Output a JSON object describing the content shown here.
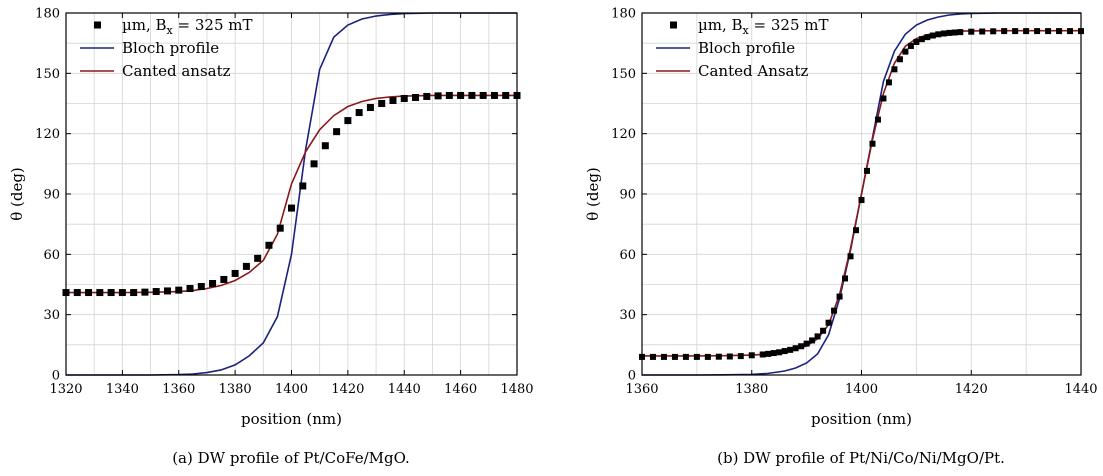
{
  "chart_data": [
    {
      "type": "line",
      "caption": "(a) DW profile of Pt/CoFe/MgO.",
      "xlabel": "position (nm)",
      "ylabel": "θ (deg)",
      "xlim": [
        1320,
        1480
      ],
      "ylim": [
        0,
        180
      ],
      "xticks": [
        1320,
        1340,
        1360,
        1380,
        1400,
        1420,
        1440,
        1460,
        1480
      ],
      "yticks": [
        0,
        30,
        60,
        90,
        120,
        150,
        180
      ],
      "grid": true,
      "legend_position": "top-left",
      "series": [
        {
          "name": "µm, B_x = 325 mT",
          "legend_parts": [
            "µm, B",
            "x",
            " = 325 mT"
          ],
          "style": "markers",
          "color": "#000000",
          "x": [
            1320,
            1324,
            1328,
            1332,
            1336,
            1340,
            1344,
            1348,
            1352,
            1356,
            1360,
            1364,
            1368,
            1372,
            1376,
            1380,
            1384,
            1388,
            1392,
            1396,
            1400,
            1404,
            1408,
            1412,
            1416,
            1420,
            1424,
            1428,
            1432,
            1436,
            1440,
            1444,
            1448,
            1452,
            1456,
            1460,
            1464,
            1468,
            1472,
            1476,
            1480
          ],
          "y": [
            41,
            41,
            41,
            41,
            41,
            41,
            41,
            41.2,
            41.5,
            41.8,
            42.2,
            43,
            44,
            45.5,
            47.5,
            50.5,
            54,
            58,
            64.5,
            73,
            83,
            94,
            105,
            114,
            121,
            126.5,
            130.5,
            133,
            135,
            136.5,
            137.5,
            138,
            138.5,
            138.8,
            139,
            139,
            139,
            139,
            139,
            139,
            139
          ]
        },
        {
          "name": "Bloch profile",
          "style": "line",
          "color": "#1a237e",
          "x": [
            1320,
            1330,
            1340,
            1350,
            1360,
            1365,
            1370,
            1375,
            1380,
            1385,
            1390,
            1395,
            1400,
            1405,
            1410,
            1415,
            1420,
            1425,
            1430,
            1435,
            1440,
            1450,
            1460,
            1470,
            1480
          ],
          "y": [
            0,
            0,
            0,
            0,
            0.2,
            0.5,
            1.2,
            2.5,
            5,
            9.5,
            16,
            29,
            60,
            112,
            152,
            168,
            174,
            177,
            178.5,
            179.3,
            179.7,
            180,
            180,
            180,
            180
          ]
        },
        {
          "name": "Canted ansatz",
          "style": "line",
          "color": "#8b1a1a",
          "x": [
            1320,
            1330,
            1340,
            1350,
            1360,
            1365,
            1370,
            1375,
            1380,
            1385,
            1390,
            1395,
            1400,
            1405,
            1410,
            1415,
            1420,
            1425,
            1430,
            1435,
            1440,
            1450,
            1460,
            1470,
            1480
          ],
          "y": [
            41,
            41,
            41,
            41.1,
            41.5,
            42,
            43,
            44.5,
            47,
            51,
            57,
            70,
            95,
            111,
            122,
            129,
            133.5,
            136,
            137.5,
            138.3,
            138.7,
            139,
            139,
            139,
            139
          ]
        }
      ]
    },
    {
      "type": "line",
      "caption": "(b) DW profile of Pt/Ni/Co/Ni/MgO/Pt.",
      "xlabel": "position (nm)",
      "ylabel": "θ (deg)",
      "xlim": [
        1360,
        1440
      ],
      "ylim": [
        0,
        180
      ],
      "xticks": [
        1360,
        1380,
        1400,
        1420,
        1440
      ],
      "yticks": [
        0,
        30,
        60,
        90,
        120,
        150,
        180
      ],
      "grid": true,
      "legend_position": "top-left",
      "series": [
        {
          "name": "µm, B_x = 325 mT",
          "legend_parts": [
            "µm, B",
            "x",
            " = 325 mT"
          ],
          "style": "markers",
          "color": "#000000",
          "x": [
            1360,
            1362,
            1364,
            1366,
            1368,
            1370,
            1372,
            1374,
            1376,
            1378,
            1380,
            1382,
            1383,
            1384,
            1385,
            1386,
            1387,
            1388,
            1389,
            1390,
            1391,
            1392,
            1393,
            1394,
            1395,
            1396,
            1397,
            1398,
            1399,
            1400,
            1401,
            1402,
            1403,
            1404,
            1405,
            1406,
            1407,
            1408,
            1409,
            1410,
            1411,
            1412,
            1413,
            1414,
            1415,
            1416,
            1417,
            1418,
            1420,
            1422,
            1424,
            1426,
            1428,
            1430,
            1432,
            1434,
            1436,
            1438,
            1440
          ],
          "y": [
            9,
            9,
            9,
            9,
            9,
            9,
            9,
            9.1,
            9.2,
            9.4,
            9.8,
            10.2,
            10.5,
            10.9,
            11.3,
            11.9,
            12.5,
            13.3,
            14.3,
            15.6,
            17.2,
            19.2,
            22,
            26,
            32,
            39,
            48,
            59,
            72,
            87,
            101.5,
            115,
            127,
            137.5,
            145.5,
            152,
            157,
            160.8,
            163.6,
            165.6,
            167,
            168,
            168.8,
            169.4,
            169.8,
            170.1,
            170.3,
            170.5,
            170.7,
            170.8,
            170.9,
            171,
            171,
            171,
            171,
            171,
            171,
            171,
            171
          ]
        },
        {
          "name": "Bloch profile",
          "style": "line",
          "color": "#1a237e",
          "x": [
            1360,
            1370,
            1375,
            1380,
            1383,
            1386,
            1388,
            1390,
            1392,
            1394,
            1396,
            1398,
            1400,
            1402,
            1404,
            1406,
            1408,
            1410,
            1412,
            1414,
            1416,
            1418,
            1420,
            1425,
            1430,
            1440
          ],
          "y": [
            0,
            0,
            0.1,
            0.3,
            0.8,
            2,
            3.5,
            6,
            10.5,
            20,
            38,
            62,
            90,
            118,
            146,
            161,
            169.5,
            174,
            176.5,
            178,
            179,
            179.5,
            179.8,
            180,
            180,
            180
          ]
        },
        {
          "name": "Canted Ansatz",
          "style": "line",
          "color": "#8b1a1a",
          "x": [
            1360,
            1365,
            1370,
            1375,
            1380,
            1383,
            1386,
            1388,
            1390,
            1392,
            1394,
            1396,
            1398,
            1400,
            1402,
            1404,
            1406,
            1408,
            1410,
            1412,
            1414,
            1416,
            1418,
            1420,
            1425,
            1430,
            1440
          ],
          "y": [
            9.5,
            9.5,
            9.5,
            9.6,
            9.9,
            10.4,
            11.5,
            12.6,
            14.5,
            18,
            25,
            40,
            63,
            90,
            117,
            140,
            155,
            163.5,
            167.3,
            169.2,
            170.2,
            170.7,
            171,
            171.1,
            171.2,
            171.2,
            171.2
          ]
        }
      ]
    }
  ]
}
